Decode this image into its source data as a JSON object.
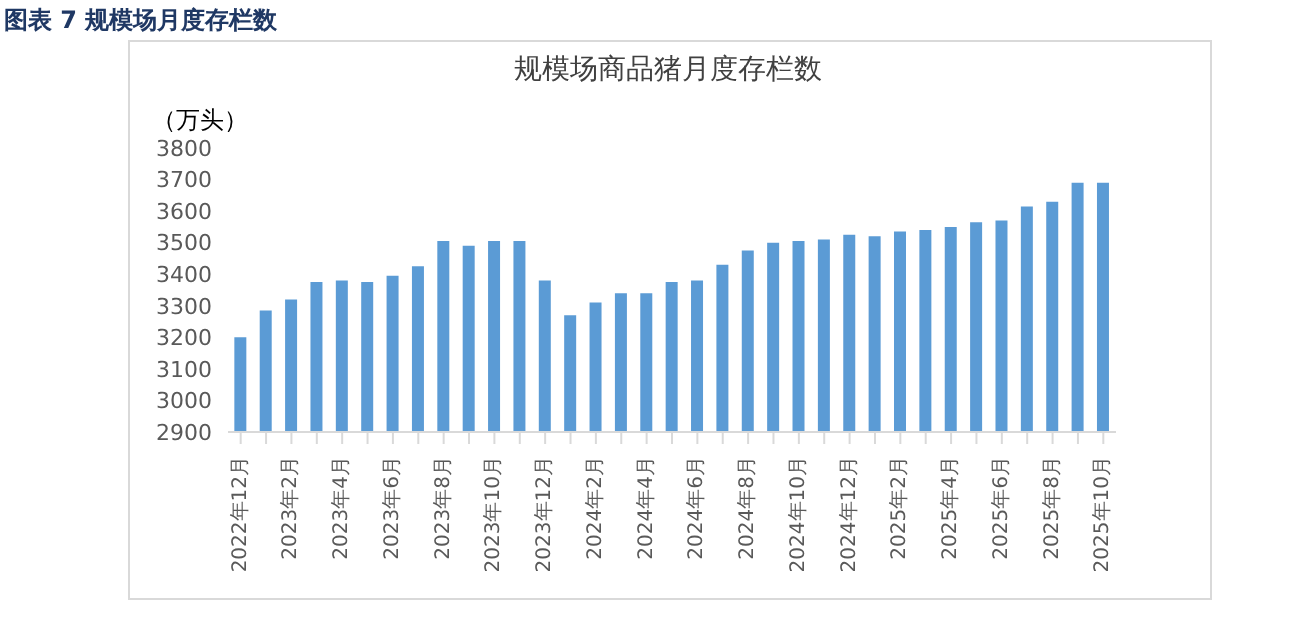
{
  "chart_data": {
    "type": "bar",
    "title": "规模场商品猪月度存栏数",
    "ylabel": "（万头）",
    "annotations": [
      "图表 7  规模场月度存栏数"
    ],
    "categories": [
      "2022年12月",
      null,
      "2023年2月",
      null,
      "2023年4月",
      null,
      "2023年6月",
      null,
      "2023年8月",
      null,
      "2023年10月",
      null,
      "2023年12月",
      null,
      "2024年2月",
      null,
      "2024年4月",
      null,
      "2024年6月",
      null,
      "2024年8月",
      null,
      "2024年10月",
      null,
      "2024年12月",
      null,
      "2025年2月",
      null,
      "2025年4月",
      null,
      "2025年6月",
      null,
      "2025年8月",
      null,
      "2025年10月"
    ],
    "values": [
      3200,
      3285,
      3320,
      3375,
      3380,
      3375,
      3395,
      3425,
      3505,
      3490,
      3505,
      3505,
      3380,
      3270,
      3310,
      3340,
      3340,
      3375,
      3380,
      3430,
      3475,
      3500,
      3505,
      3510,
      3525,
      3520,
      3535,
      3540,
      3550,
      3565,
      3570,
      3615,
      3630,
      3690,
      3690
    ],
    "color": "#5b9bd5",
    "ylim": [
      2900,
      3800
    ],
    "yticks": [
      2900,
      3000,
      3100,
      3200,
      3300,
      3400,
      3500,
      3600,
      3700,
      3800
    ],
    "grid": false,
    "legend": false
  }
}
